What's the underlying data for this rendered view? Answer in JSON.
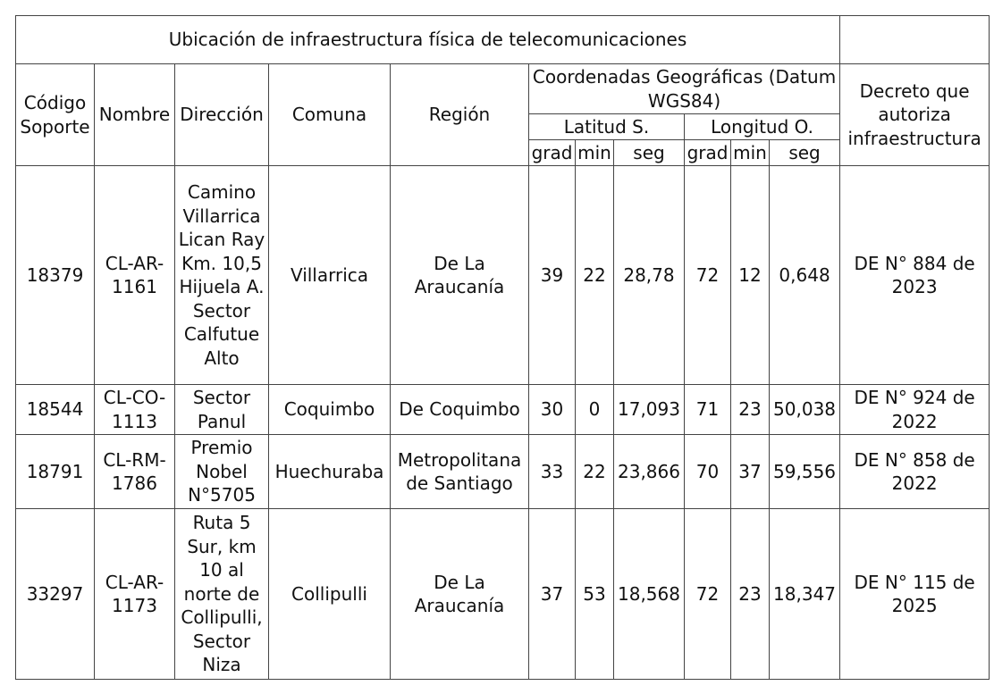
{
  "table": {
    "title": "Ubicación de infraestructura física de telecomunicaciones",
    "headers": {
      "codigo": "Código Soporte",
      "nombre": "Nombre",
      "direccion": "Dirección",
      "comuna": "Comuna",
      "region": "Región",
      "coordenadas": "Coordenadas Geográficas (Datum WGS84)",
      "latitud": "Latitud S.",
      "longitud": "Longitud O.",
      "grad": "grad",
      "min": "min",
      "seg": "seg",
      "decreto": "Decreto que autoriza infraestructura"
    },
    "rows": [
      {
        "codigo": "18379",
        "nombre": "CL-AR-1161",
        "direccion": "Camino Villarrica Lican Ray Km. 10,5 Hijuela A. Sector Calfutue Alto",
        "comuna": "Villarrica",
        "region": "De La Araucanía",
        "lat_grad": "39",
        "lat_min": "22",
        "lat_seg": "28,78",
        "lon_grad": "72",
        "lon_min": "12",
        "lon_seg": "0,648",
        "decreto": "DE N° 884 de 2023"
      },
      {
        "codigo": "18544",
        "nombre": "CL-CO-1113",
        "direccion": "Sector Panul",
        "comuna": "Coquimbo",
        "region": "De Coquimbo",
        "lat_grad": "30",
        "lat_min": "0",
        "lat_seg": "17,093",
        "lon_grad": "71",
        "lon_min": "23",
        "lon_seg": "50,038",
        "decreto": "DE N° 924 de 2022"
      },
      {
        "codigo": "18791",
        "nombre": "CL-RM-1786",
        "direccion": "Premio Nobel N°5705",
        "comuna": "Huechuraba",
        "region": "Metropolitana de Santiago",
        "lat_grad": "33",
        "lat_min": "22",
        "lat_seg": "23,866",
        "lon_grad": "70",
        "lon_min": "37",
        "lon_seg": "59,556",
        "decreto": "DE N° 858 de 2022"
      },
      {
        "codigo": "33297",
        "nombre": "CL-AR-1173",
        "direccion": "Ruta 5 Sur, km 10 al norte de Collipulli, Sector Niza",
        "comuna": "Collipulli",
        "region": "De La Araucanía",
        "lat_grad": "37",
        "lat_min": "53",
        "lat_seg": "18,568",
        "lon_grad": "72",
        "lon_min": "23",
        "lon_seg": "18,347",
        "decreto": "DE N° 115 de 2025"
      }
    ]
  }
}
